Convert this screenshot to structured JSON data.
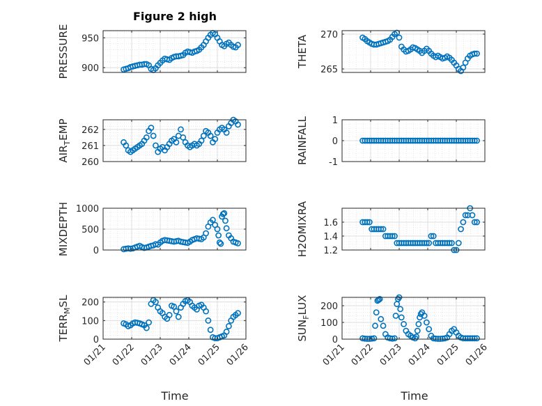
{
  "figure": {
    "title": "Figure 2 high",
    "xlabel_left": "Time",
    "xlabel_right": "Time",
    "marker_color": "#0072BD"
  },
  "chart_data": [
    {
      "type": "scatter",
      "position": "row1-left",
      "ylabel": "PRESSURE",
      "ylabel_main": "PRESSURE",
      "ylabel_sub": "",
      "ylim": [
        892,
        962
      ],
      "yticks": [
        900,
        950
      ],
      "ytick_labels": [
        "900",
        "950"
      ],
      "xlim": [
        0,
        5
      ],
      "xticks": [
        0,
        1,
        2,
        3,
        4,
        5
      ],
      "xtick_labels": [
        "01/21",
        "01/22",
        "01/23",
        "01/24",
        "01/25",
        "01/26"
      ],
      "show_xticklabels": false,
      "x": [
        0.72,
        0.8,
        0.88,
        0.96,
        1.04,
        1.12,
        1.2,
        1.28,
        1.36,
        1.44,
        1.52,
        1.6,
        1.68,
        1.76,
        1.84,
        1.92,
        2.0,
        2.08,
        2.16,
        2.24,
        2.32,
        2.4,
        2.48,
        2.56,
        2.64,
        2.72,
        2.8,
        2.88,
        2.96,
        3.04,
        3.12,
        3.2,
        3.28,
        3.36,
        3.44,
        3.52,
        3.6,
        3.68,
        3.76,
        3.84,
        3.92,
        4.0,
        4.08,
        4.16,
        4.24,
        4.32,
        4.4,
        4.48,
        4.56,
        4.64,
        4.72
      ],
      "y": [
        897,
        898,
        899,
        901,
        902,
        903,
        904,
        905,
        905,
        906,
        906,
        904,
        898,
        896,
        899,
        904,
        908,
        912,
        915,
        914,
        913,
        916,
        918,
        919,
        919,
        920,
        921,
        925,
        927,
        926,
        925,
        927,
        928,
        930,
        934,
        938,
        944,
        950,
        955,
        958,
        956,
        950,
        944,
        938,
        936,
        940,
        942,
        938,
        935,
        934,
        938
      ]
    },
    {
      "type": "scatter",
      "position": "row1-right",
      "ylabel": "THETA",
      "ylabel_main": "THETA",
      "ylabel_sub": "",
      "ylim": [
        264.5,
        270.5
      ],
      "yticks": [
        265,
        270
      ],
      "ytick_labels": [
        "265",
        "270"
      ],
      "xlim": [
        0,
        5
      ],
      "xticks": [
        0,
        1,
        2,
        3,
        4,
        5
      ],
      "xtick_labels": [
        "01/21",
        "01/22",
        "01/23",
        "01/24",
        "01/25",
        "01/26"
      ],
      "show_xticklabels": false,
      "x": [
        0.72,
        0.8,
        0.88,
        0.96,
        1.04,
        1.12,
        1.2,
        1.28,
        1.36,
        1.44,
        1.52,
        1.6,
        1.68,
        1.76,
        1.84,
        1.92,
        2.0,
        2.08,
        2.16,
        2.24,
        2.32,
        2.4,
        2.48,
        2.56,
        2.64,
        2.72,
        2.8,
        2.88,
        2.96,
        3.04,
        3.12,
        3.2,
        3.28,
        3.36,
        3.44,
        3.52,
        3.6,
        3.68,
        3.76,
        3.84,
        3.92,
        4.0,
        4.08,
        4.16,
        4.24,
        4.32,
        4.4,
        4.48,
        4.56,
        4.64,
        4.72
      ],
      "y": [
        269.5,
        269.3,
        269.0,
        268.8,
        268.6,
        268.5,
        268.5,
        268.6,
        268.7,
        268.8,
        268.9,
        269.0,
        269.2,
        269.6,
        270.0,
        270.2,
        269.5,
        268.2,
        267.8,
        267.5,
        267.6,
        267.8,
        268.1,
        268.0,
        267.8,
        267.6,
        267.3,
        267.6,
        267.9,
        267.6,
        267.2,
        266.9,
        266.7,
        266.9,
        266.7,
        266.5,
        266.6,
        266.8,
        266.6,
        266.3,
        265.9,
        265.5,
        265.0,
        264.7,
        265.2,
        265.9,
        266.5,
        266.9,
        267.1,
        267.2,
        267.2
      ]
    },
    {
      "type": "scatter",
      "position": "row2-left",
      "ylabel": "AIR_TEMP",
      "ylabel_main": "AIR",
      "ylabel_sub": "T",
      "ylabel_rest": "EMP",
      "ylim": [
        260,
        262.6
      ],
      "yticks": [
        260,
        261,
        262
      ],
      "ytick_labels": [
        "260",
        "261",
        "262"
      ],
      "xlim": [
        0,
        5
      ],
      "xticks": [
        0,
        1,
        2,
        3,
        4,
        5
      ],
      "xtick_labels": [
        "01/21",
        "01/22",
        "01/23",
        "01/24",
        "01/25",
        "01/26"
      ],
      "show_xticklabels": false,
      "x": [
        0.72,
        0.8,
        0.88,
        0.96,
        1.04,
        1.12,
        1.2,
        1.28,
        1.36,
        1.44,
        1.52,
        1.6,
        1.68,
        1.76,
        1.84,
        1.92,
        2.0,
        2.08,
        2.16,
        2.24,
        2.32,
        2.4,
        2.48,
        2.56,
        2.64,
        2.72,
        2.8,
        2.88,
        2.96,
        3.04,
        3.12,
        3.2,
        3.28,
        3.36,
        3.44,
        3.52,
        3.6,
        3.68,
        3.76,
        3.84,
        3.92,
        4.0,
        4.08,
        4.16,
        4.24,
        4.32,
        4.4,
        4.48,
        4.56,
        4.64,
        4.72
      ],
      "y": [
        261.2,
        261.0,
        260.7,
        260.6,
        260.7,
        260.8,
        260.9,
        261.0,
        261.1,
        261.3,
        261.5,
        261.9,
        262.1,
        261.6,
        261.0,
        260.6,
        260.8,
        260.9,
        260.7,
        260.9,
        261.1,
        261.3,
        261.4,
        261.2,
        261.6,
        262.0,
        261.5,
        261.2,
        261.0,
        260.9,
        261.0,
        261.1,
        261.0,
        261.1,
        261.3,
        261.6,
        261.9,
        261.8,
        261.6,
        261.2,
        261.4,
        261.8,
        262.0,
        262.1,
        262.0,
        261.8,
        262.2,
        262.4,
        262.6,
        262.5,
        262.3
      ]
    },
    {
      "type": "scatter",
      "position": "row2-right",
      "ylabel": "RAINFALL",
      "ylabel_main": "RAINFALL",
      "ylabel_sub": "",
      "ylim": [
        -1,
        1
      ],
      "yticks": [
        -1,
        0,
        1
      ],
      "ytick_labels": [
        "-1",
        "0",
        "1"
      ],
      "xlim": [
        0,
        5
      ],
      "xticks": [
        0,
        1,
        2,
        3,
        4,
        5
      ],
      "xtick_labels": [
        "01/21",
        "01/22",
        "01/23",
        "01/24",
        "01/25",
        "01/26"
      ],
      "show_xticklabels": false,
      "x": [
        0.72,
        0.8,
        0.88,
        0.96,
        1.04,
        1.12,
        1.2,
        1.28,
        1.36,
        1.44,
        1.52,
        1.6,
        1.68,
        1.76,
        1.84,
        1.92,
        2.0,
        2.08,
        2.16,
        2.24,
        2.32,
        2.4,
        2.48,
        2.56,
        2.64,
        2.72,
        2.8,
        2.88,
        2.96,
        3.04,
        3.12,
        3.2,
        3.28,
        3.36,
        3.44,
        3.52,
        3.6,
        3.68,
        3.76,
        3.84,
        3.92,
        4.0,
        4.08,
        4.16,
        4.24,
        4.32,
        4.4,
        4.48,
        4.56,
        4.64,
        4.72
      ],
      "y": [
        0,
        0,
        0,
        0,
        0,
        0,
        0,
        0,
        0,
        0,
        0,
        0,
        0,
        0,
        0,
        0,
        0,
        0,
        0,
        0,
        0,
        0,
        0,
        0,
        0,
        0,
        0,
        0,
        0,
        0,
        0,
        0,
        0,
        0,
        0,
        0,
        0,
        0,
        0,
        0,
        0,
        0,
        0,
        0,
        0,
        0,
        0,
        0,
        0,
        0,
        0
      ]
    },
    {
      "type": "scatter",
      "position": "row3-left",
      "ylabel": "MIXDEPTH",
      "ylabel_main": "MIXDEPTH",
      "ylabel_sub": "",
      "ylim": [
        0,
        1000
      ],
      "yticks": [
        0,
        500,
        1000
      ],
      "ytick_labels": [
        "0",
        "500",
        "1000"
      ],
      "xlim": [
        0,
        5
      ],
      "xticks": [
        0,
        1,
        2,
        3,
        4,
        5
      ],
      "xtick_labels": [
        "01/21",
        "01/22",
        "01/23",
        "01/24",
        "01/25",
        "01/26"
      ],
      "show_xticklabels": false,
      "x": [
        0.72,
        0.8,
        0.88,
        0.96,
        1.04,
        1.12,
        1.2,
        1.28,
        1.36,
        1.44,
        1.52,
        1.6,
        1.68,
        1.76,
        1.84,
        1.92,
        2.0,
        2.08,
        2.16,
        2.24,
        2.32,
        2.4,
        2.48,
        2.56,
        2.64,
        2.72,
        2.8,
        2.88,
        2.96,
        3.04,
        3.12,
        3.2,
        3.28,
        3.36,
        3.44,
        3.52,
        3.6,
        3.68,
        3.76,
        3.84,
        3.92,
        4.0,
        4.04,
        4.08,
        4.12,
        4.16,
        4.2,
        4.24,
        4.28,
        4.32,
        4.4,
        4.48,
        4.56,
        4.64,
        4.72
      ],
      "y": [
        20,
        30,
        40,
        30,
        40,
        60,
        80,
        100,
        70,
        50,
        60,
        80,
        100,
        110,
        140,
        130,
        180,
        220,
        240,
        230,
        220,
        210,
        200,
        210,
        220,
        200,
        190,
        180,
        170,
        200,
        240,
        260,
        280,
        270,
        260,
        300,
        400,
        560,
        660,
        720,
        600,
        500,
        350,
        180,
        150,
        800,
        860,
        880,
        700,
        520,
        350,
        280,
        200,
        180,
        160
      ]
    },
    {
      "type": "scatter",
      "position": "row3-right",
      "ylabel": "H2OMIXRA",
      "ylabel_main": "H2OMIXRA",
      "ylabel_sub": "",
      "ylim": [
        1.2,
        1.8
      ],
      "yticks": [
        1.2,
        1.4,
        1.6
      ],
      "ytick_labels": [
        "1.2",
        "1.4",
        "1.6"
      ],
      "xlim": [
        0,
        5
      ],
      "xticks": [
        0,
        1,
        2,
        3,
        4,
        5
      ],
      "xtick_labels": [
        "01/21",
        "01/22",
        "01/23",
        "01/24",
        "01/25",
        "01/26"
      ],
      "show_xticklabels": false,
      "x": [
        0.72,
        0.8,
        0.88,
        0.96,
        1.04,
        1.12,
        1.2,
        1.28,
        1.36,
        1.44,
        1.52,
        1.6,
        1.68,
        1.76,
        1.84,
        1.92,
        2.0,
        2.08,
        2.16,
        2.24,
        2.32,
        2.4,
        2.48,
        2.56,
        2.64,
        2.72,
        2.8,
        2.88,
        2.96,
        3.04,
        3.12,
        3.2,
        3.28,
        3.36,
        3.44,
        3.52,
        3.6,
        3.68,
        3.76,
        3.84,
        3.92,
        4.0,
        4.08,
        4.16,
        4.24,
        4.32,
        4.4,
        4.48,
        4.56,
        4.64,
        4.72
      ],
      "y": [
        1.6,
        1.6,
        1.6,
        1.6,
        1.5,
        1.5,
        1.5,
        1.5,
        1.5,
        1.5,
        1.4,
        1.4,
        1.4,
        1.4,
        1.4,
        1.3,
        1.3,
        1.3,
        1.3,
        1.3,
        1.3,
        1.3,
        1.3,
        1.3,
        1.3,
        1.3,
        1.3,
        1.3,
        1.3,
        1.3,
        1.4,
        1.4,
        1.3,
        1.3,
        1.3,
        1.3,
        1.3,
        1.3,
        1.3,
        1.3,
        1.2,
        1.2,
        1.3,
        1.5,
        1.6,
        1.7,
        1.7,
        1.8,
        1.7,
        1.6,
        1.6
      ]
    },
    {
      "type": "scatter",
      "position": "row4-left",
      "ylabel": "TERR_MSL",
      "ylabel_main": "TERR",
      "ylabel_sub": "M",
      "ylabel_rest": "SL",
      "ylim": [
        0,
        225
      ],
      "yticks": [
        0,
        100,
        200
      ],
      "ytick_labels": [
        "0",
        "100",
        "200"
      ],
      "xlim": [
        0,
        5
      ],
      "xticks": [
        0,
        1,
        2,
        3,
        4,
        5
      ],
      "xtick_labels": [
        "01/21",
        "01/22",
        "01/23",
        "01/24",
        "01/25",
        "01/26"
      ],
      "show_xticklabels": true,
      "x": [
        0.72,
        0.8,
        0.88,
        0.96,
        1.04,
        1.12,
        1.2,
        1.28,
        1.36,
        1.44,
        1.52,
        1.6,
        1.68,
        1.76,
        1.84,
        1.92,
        2.0,
        2.08,
        2.16,
        2.24,
        2.32,
        2.4,
        2.48,
        2.56,
        2.64,
        2.72,
        2.8,
        2.88,
        2.96,
        3.04,
        3.12,
        3.2,
        3.28,
        3.36,
        3.44,
        3.52,
        3.6,
        3.68,
        3.76,
        3.84,
        3.92,
        4.0,
        4.08,
        4.16,
        4.24,
        4.32,
        4.4,
        4.48,
        4.56,
        4.64,
        4.72
      ],
      "y": [
        85,
        80,
        70,
        75,
        85,
        90,
        88,
        85,
        80,
        75,
        60,
        90,
        190,
        210,
        200,
        170,
        150,
        140,
        120,
        110,
        130,
        180,
        175,
        150,
        120,
        170,
        190,
        205,
        210,
        200,
        180,
        170,
        160,
        180,
        185,
        170,
        150,
        100,
        50,
        10,
        5,
        5,
        10,
        15,
        20,
        40,
        70,
        100,
        120,
        130,
        140
      ]
    },
    {
      "type": "scatter",
      "position": "row4-right",
      "ylabel": "SUN_FLUX",
      "ylabel_main": "SUN",
      "ylabel_sub": "F",
      "ylabel_rest": "LUX",
      "ylim": [
        0,
        250
      ],
      "yticks": [
        0,
        100,
        200
      ],
      "ytick_labels": [
        "0",
        "100",
        "200"
      ],
      "xlim": [
        0,
        5
      ],
      "xticks": [
        0,
        1,
        2,
        3,
        4,
        5
      ],
      "xtick_labels": [
        "01/21",
        "01/22",
        "01/23",
        "01/24",
        "01/25",
        "01/26"
      ],
      "show_xticklabels": true,
      "x": [
        0.72,
        0.8,
        0.88,
        0.96,
        1.04,
        1.12,
        1.16,
        1.2,
        1.24,
        1.28,
        1.32,
        1.36,
        1.44,
        1.52,
        1.6,
        1.68,
        1.76,
        1.84,
        1.88,
        1.92,
        1.96,
        2.0,
        2.04,
        2.08,
        2.16,
        2.24,
        2.32,
        2.4,
        2.48,
        2.56,
        2.6,
        2.64,
        2.68,
        2.72,
        2.76,
        2.8,
        2.88,
        2.96,
        3.04,
        3.12,
        3.2,
        3.28,
        3.36,
        3.44,
        3.52,
        3.6,
        3.68,
        3.76,
        3.84,
        3.92,
        4.0,
        4.08,
        4.16,
        4.24,
        4.32,
        4.4,
        4.48,
        4.56,
        4.64,
        4.72
      ],
      "y": [
        5,
        3,
        2,
        2,
        3,
        5,
        80,
        160,
        230,
        235,
        240,
        120,
        80,
        30,
        10,
        5,
        3,
        5,
        140,
        210,
        240,
        250,
        180,
        130,
        90,
        50,
        30,
        20,
        10,
        5,
        15,
        50,
        90,
        130,
        150,
        160,
        140,
        100,
        60,
        20,
        5,
        3,
        2,
        2,
        3,
        5,
        10,
        30,
        50,
        60,
        40,
        20,
        10,
        5,
        5,
        5,
        5,
        5,
        5,
        5
      ]
    }
  ]
}
